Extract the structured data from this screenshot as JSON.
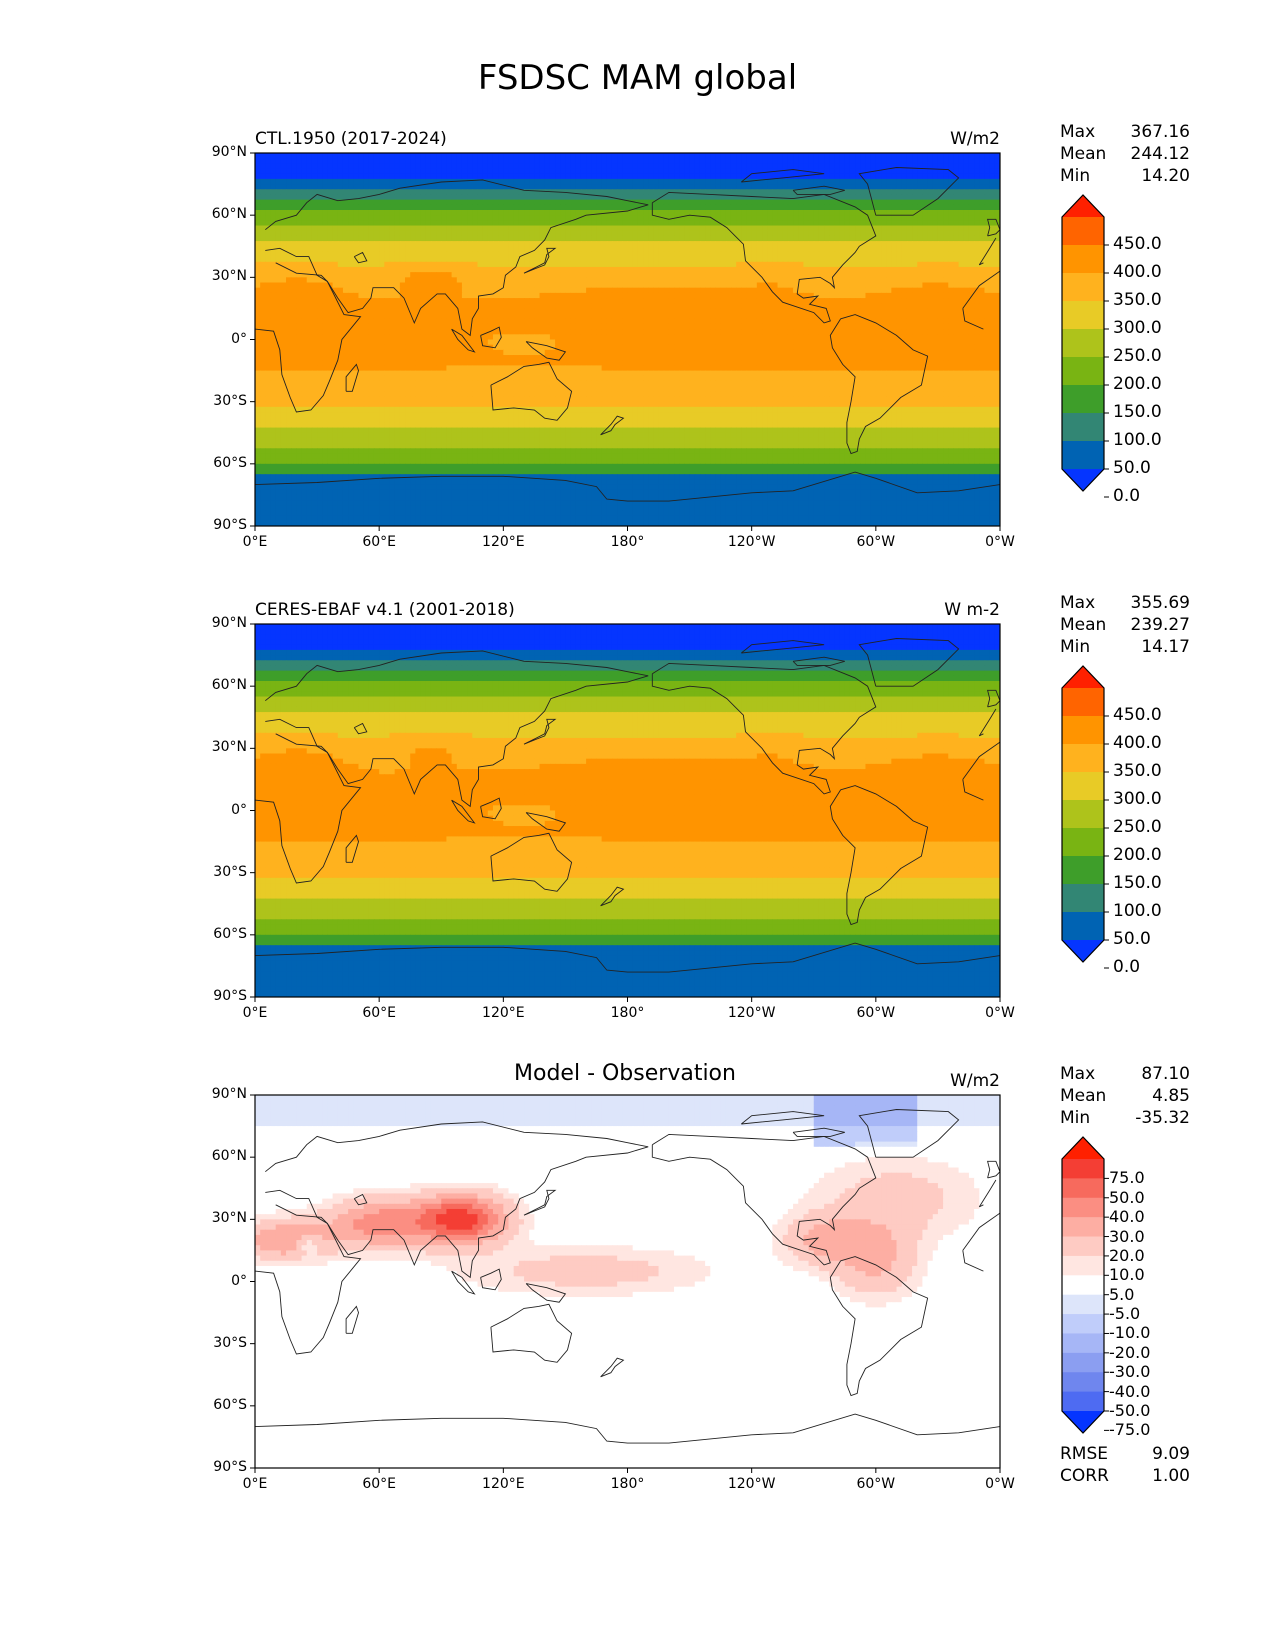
{
  "figure": {
    "title": "FSDSC MAM global"
  },
  "x_ticks": [
    "0°E",
    "60°E",
    "120°E",
    "180°",
    "120°W",
    "60°W",
    "0°W"
  ],
  "y_ticks": [
    "90°N",
    "60°N",
    "30°N",
    "0°",
    "30°S",
    "60°S",
    "90°S"
  ],
  "panels": [
    {
      "title": "CTL.1950 (2017-2024)",
      "units": "W/m2",
      "stats": [
        {
          "label": "Max",
          "value": "367.16"
        },
        {
          "label": "Mean",
          "value": "244.12"
        },
        {
          "label": "Min",
          "value": "14.20"
        }
      ],
      "colorbar": {
        "ticks": [
          "450.0",
          "400.0",
          "350.0",
          "300.0",
          "250.0",
          "200.0",
          "150.0",
          "100.0",
          "50.0",
          "0.0"
        ],
        "colors": [
          "#ff2000",
          "#ff6400",
          "#ff9400",
          "#ffb21e",
          "#e8cb26",
          "#aec31b",
          "#79b413",
          "#3e9e2a",
          "#328674",
          "#0063b3",
          "#0535ff"
        ]
      },
      "map": {
        "type": "model-insolation"
      }
    },
    {
      "title": "CERES-EBAF v4.1 (2001-2018)",
      "units": "W m-2",
      "stats": [
        {
          "label": "Max",
          "value": "355.69"
        },
        {
          "label": "Mean",
          "value": "239.27"
        },
        {
          "label": "Min",
          "value": "14.17"
        }
      ],
      "colorbar": {
        "ticks": [
          "450.0",
          "400.0",
          "350.0",
          "300.0",
          "250.0",
          "200.0",
          "150.0",
          "100.0",
          "50.0",
          "0.0"
        ],
        "colors": [
          "#ff2000",
          "#ff6400",
          "#ff9400",
          "#ffb21e",
          "#e8cb26",
          "#aec31b",
          "#79b413",
          "#3e9e2a",
          "#328674",
          "#0063b3",
          "#0535ff"
        ]
      },
      "map": {
        "type": "observed-insolation"
      }
    },
    {
      "title": "Model - Observation",
      "units": "W/m2",
      "stats": [
        {
          "label": "Max",
          "value": "87.10"
        },
        {
          "label": "Mean",
          "value": "4.85"
        },
        {
          "label": "Min",
          "value": "-35.32"
        }
      ],
      "colorbar": {
        "ticks": [
          "75.0",
          "50.0",
          "40.0",
          "30.0",
          "20.0",
          "10.0",
          "5.0",
          "-5.0",
          "-10.0",
          "-20.0",
          "-30.0",
          "-40.0",
          "-50.0",
          "-75.0"
        ],
        "colors": [
          "#ff2000",
          "#f43e34",
          "#f76a5d",
          "#fb8e82",
          "#fdaea3",
          "#fecbc3",
          "#ffe6e1",
          "#ffffff",
          "#dde5fa",
          "#c0cdfa",
          "#a6b6f6",
          "#8b9ef1",
          "#6f86ee",
          "#4e6bf2",
          "#0535ff"
        ]
      },
      "summary": [
        {
          "label": "RMSE",
          "value": "9.09"
        },
        {
          "label": "CORR",
          "value": "1.00"
        }
      ],
      "map": {
        "type": "difference"
      }
    }
  ]
}
